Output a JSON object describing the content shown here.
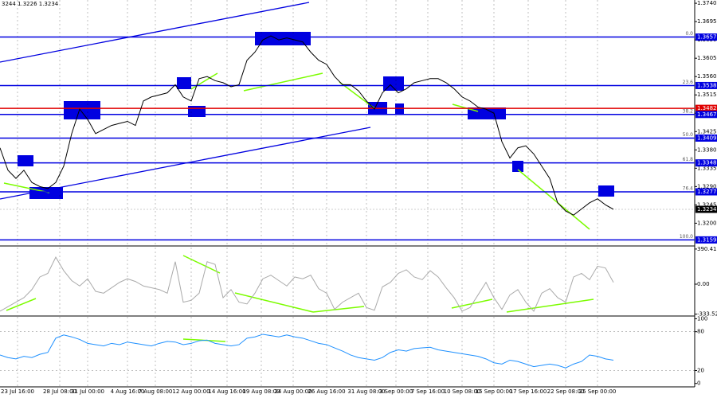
{
  "chart_data": [
    {
      "type": "line",
      "header": "3244 1.3226 1.3234",
      "x": [
        0,
        1,
        2,
        3,
        4,
        5,
        6,
        7,
        8,
        9,
        10,
        11,
        12,
        13,
        14,
        15,
        16,
        17,
        18,
        19,
        20,
        21,
        22,
        23,
        24,
        25,
        26,
        27,
        28,
        29,
        30,
        31,
        32,
        33,
        34,
        35,
        36,
        37,
        38,
        39,
        40,
        41,
        42,
        43,
        44,
        45,
        46,
        47,
        48,
        49,
        50,
        51,
        52,
        53,
        54,
        55,
        56,
        57,
        58,
        59,
        60,
        61,
        62,
        63,
        64,
        65,
        66,
        67,
        68,
        69,
        70,
        71,
        72,
        73,
        74,
        75,
        76,
        77
      ],
      "xlim": [
        0,
        87.2
      ],
      "xticks": [
        {
          "value": 2.2,
          "label": "23 Jul 16:00"
        },
        {
          "value": 7.5,
          "label": "28 Jul 08:00"
        },
        {
          "value": 11,
          "label": "31 Jul 00:00"
        },
        {
          "value": 16,
          "label": "4 Aug 16:00"
        },
        {
          "value": 19.5,
          "label": "7 Aug 08:00"
        },
        {
          "value": 24,
          "label": "12 Aug 00:00"
        },
        {
          "value": 28.5,
          "label": "14 Aug 16:00"
        },
        {
          "value": 32.8,
          "label": "19 Aug 08:00"
        },
        {
          "value": 36.8,
          "label": "24 Aug 00:00"
        },
        {
          "value": 41,
          "label": "26 Aug 16:00"
        },
        {
          "value": 46,
          "label": "31 Aug 08:00"
        },
        {
          "value": 49.7,
          "label": "3 Sep 00:00"
        },
        {
          "value": 53.7,
          "label": "7 Sep 16:00"
        },
        {
          "value": 58,
          "label": "10 Sep 08:00"
        },
        {
          "value": 62,
          "label": "15 Sep 00:00"
        },
        {
          "value": 66.3,
          "label": "17 Sep 16:00"
        },
        {
          "value": 71,
          "label": "22 Sep 08:00"
        },
        {
          "value": 75,
          "label": "25 Sep 00:00"
        }
      ],
      "series": [
        {
          "color": "#000000",
          "values": [
            1.3385,
            1.333,
            1.331,
            1.333,
            1.33,
            1.329,
            1.3285,
            1.33,
            1.334,
            1.342,
            1.348,
            1.3455,
            1.342,
            1.343,
            1.344,
            1.3445,
            1.345,
            1.344,
            1.35,
            1.351,
            1.3515,
            1.352,
            1.354,
            1.351,
            1.35,
            1.3555,
            1.356,
            1.355,
            1.3545,
            1.3535,
            1.354,
            1.36,
            1.362,
            1.365,
            1.366,
            1.365,
            1.3655,
            1.365,
            1.3645,
            1.362,
            1.36,
            1.359,
            1.356,
            1.354,
            1.354,
            1.3525,
            1.35,
            1.348,
            1.352,
            1.354,
            1.352,
            1.353,
            1.3545,
            1.355,
            1.3555,
            1.3555,
            1.3545,
            1.353,
            1.351,
            1.35,
            1.3485,
            1.348,
            1.347,
            1.34,
            1.336,
            1.3385,
            1.339,
            1.337,
            1.334,
            1.331,
            1.325,
            1.323,
            1.322,
            1.3235,
            1.325,
            1.326,
            1.3245,
            1.3234
          ]
        }
      ],
      "ylim": [
        1.3148,
        1.3748
      ],
      "yticks": [
        {
          "value": 1.374,
          "label": "1.3740"
        },
        {
          "value": 1.3695,
          "label": "1.3695"
        },
        {
          "value": 1.365,
          "label": "1.3650"
        },
        {
          "value": 1.3605,
          "label": "1.3605"
        },
        {
          "value": 1.356,
          "label": "1.3560"
        },
        {
          "value": 1.3515,
          "label": "1.3515"
        },
        {
          "value": 1.347,
          "label": "1.3470"
        },
        {
          "value": 1.3425,
          "label": "1.3425"
        },
        {
          "value": 1.338,
          "label": "1.3380"
        },
        {
          "value": 1.3335,
          "label": "1.3335"
        },
        {
          "value": 1.329,
          "label": "1.3290"
        },
        {
          "value": 1.3245,
          "label": "1.3245"
        },
        {
          "value": 1.32,
          "label": "1.3200"
        }
      ],
      "levels": [
        {
          "value": 1.3657,
          "label": "1.3657",
          "fib": "0.0",
          "color": "#0000e0"
        },
        {
          "value": 1.3538,
          "label": "1.3538",
          "fib": "23.6",
          "color": "#0000e0"
        },
        {
          "value": 1.3482,
          "label": "1.3482",
          "color": "#e00000"
        },
        {
          "value": 1.3467,
          "label": "1.3467",
          "fib": "38.2",
          "color": "#0000e0"
        },
        {
          "value": 1.3409,
          "label": "1.3409",
          "fib": "50.0",
          "color": "#0000e0"
        },
        {
          "value": 1.3348,
          "label": "1.3348",
          "fib": "61.8",
          "color": "#0000e0"
        },
        {
          "value": 1.3277,
          "label": "1.3277",
          "fib": "76.4",
          "color": "#0000e0"
        },
        {
          "value": 1.3234,
          "label": "1.3234",
          "color": "#000000"
        },
        {
          "value": 1.3159,
          "label": "1.3159",
          "fib": "100.0",
          "color": "#0000e0"
        }
      ]
    },
    {
      "type": "line",
      "x": [
        0,
        1,
        2,
        3,
        4,
        5,
        6,
        7,
        8,
        9,
        10,
        11,
        12,
        13,
        14,
        15,
        16,
        17,
        18,
        19,
        20,
        21,
        22,
        23,
        24,
        25,
        26,
        27,
        28,
        29,
        30,
        31,
        32,
        33,
        34,
        35,
        36,
        37,
        38,
        39,
        40,
        41,
        42,
        43,
        44,
        45,
        46,
        47,
        48,
        49,
        50,
        51,
        52,
        53,
        54,
        55,
        56,
        57,
        58,
        59,
        60,
        61,
        62,
        63,
        64,
        65,
        66,
        67,
        68,
        69,
        70,
        71,
        72,
        73,
        74,
        75,
        76,
        77
      ],
      "xlim": [
        0,
        87.2
      ],
      "series": [
        {
          "color": "#aaaaaa",
          "values": [
            -300,
            -250,
            -200,
            -150,
            -60,
            80,
            120,
            300,
            150,
            40,
            -20,
            60,
            -80,
            -100,
            -40,
            20,
            60,
            30,
            -20,
            -40,
            -60,
            -100,
            250,
            -200,
            -180,
            -100,
            250,
            220,
            -150,
            -60,
            -200,
            -220,
            -100,
            60,
            100,
            40,
            -20,
            80,
            60,
            100,
            -50,
            -100,
            -280,
            -200,
            -150,
            -100,
            -260,
            -290,
            -30,
            20,
            120,
            160,
            80,
            50,
            150,
            80,
            -40,
            -150,
            -300,
            -260,
            -120,
            20,
            -150,
            -280,
            -120,
            -60,
            -200,
            -300,
            -100,
            -50,
            -150,
            -200,
            80,
            120,
            50,
            200,
            180,
            20
          ]
        }
      ],
      "ylim": [
        -345,
        407
      ],
      "yticks": [
        {
          "value": 390.4163,
          "label": "390.4163"
        },
        {
          "value": 0,
          "label": "0.00"
        },
        {
          "value": -333.522,
          "label": "-333.522"
        }
      ]
    },
    {
      "type": "line",
      "x": [
        0,
        1,
        2,
        3,
        4,
        5,
        6,
        7,
        8,
        9,
        10,
        11,
        12,
        13,
        14,
        15,
        16,
        17,
        18,
        19,
        20,
        21,
        22,
        23,
        24,
        25,
        26,
        27,
        28,
        29,
        30,
        31,
        32,
        33,
        34,
        35,
        36,
        37,
        38,
        39,
        40,
        41,
        42,
        43,
        44,
        45,
        46,
        47,
        48,
        49,
        50,
        51,
        52,
        53,
        54,
        55,
        56,
        57,
        58,
        59,
        60,
        61,
        62,
        63,
        64,
        65,
        66,
        67,
        68,
        69,
        70,
        71,
        72,
        73,
        74,
        75,
        76,
        77
      ],
      "xlim": [
        0,
        87.2
      ],
      "series": [
        {
          "color": "#1e90ff",
          "values": [
            44,
            40,
            38,
            42,
            40,
            45,
            48,
            70,
            75,
            72,
            68,
            62,
            60,
            58,
            62,
            60,
            64,
            62,
            60,
            58,
            62,
            65,
            64,
            60,
            62,
            66,
            67,
            62,
            60,
            58,
            60,
            70,
            72,
            76,
            74,
            72,
            75,
            72,
            70,
            66,
            62,
            60,
            55,
            50,
            44,
            40,
            38,
            36,
            40,
            48,
            52,
            50,
            54,
            55,
            56,
            52,
            50,
            48,
            46,
            44,
            42,
            38,
            32,
            30,
            36,
            34,
            30,
            26,
            28,
            30,
            28,
            24,
            30,
            34,
            44,
            42,
            38,
            36
          ]
        }
      ],
      "ylim": [
        -4,
        103
      ],
      "yticks": [
        100,
        80,
        20,
        0
      ],
      "grid_lines": [
        80,
        20
      ]
    }
  ]
}
